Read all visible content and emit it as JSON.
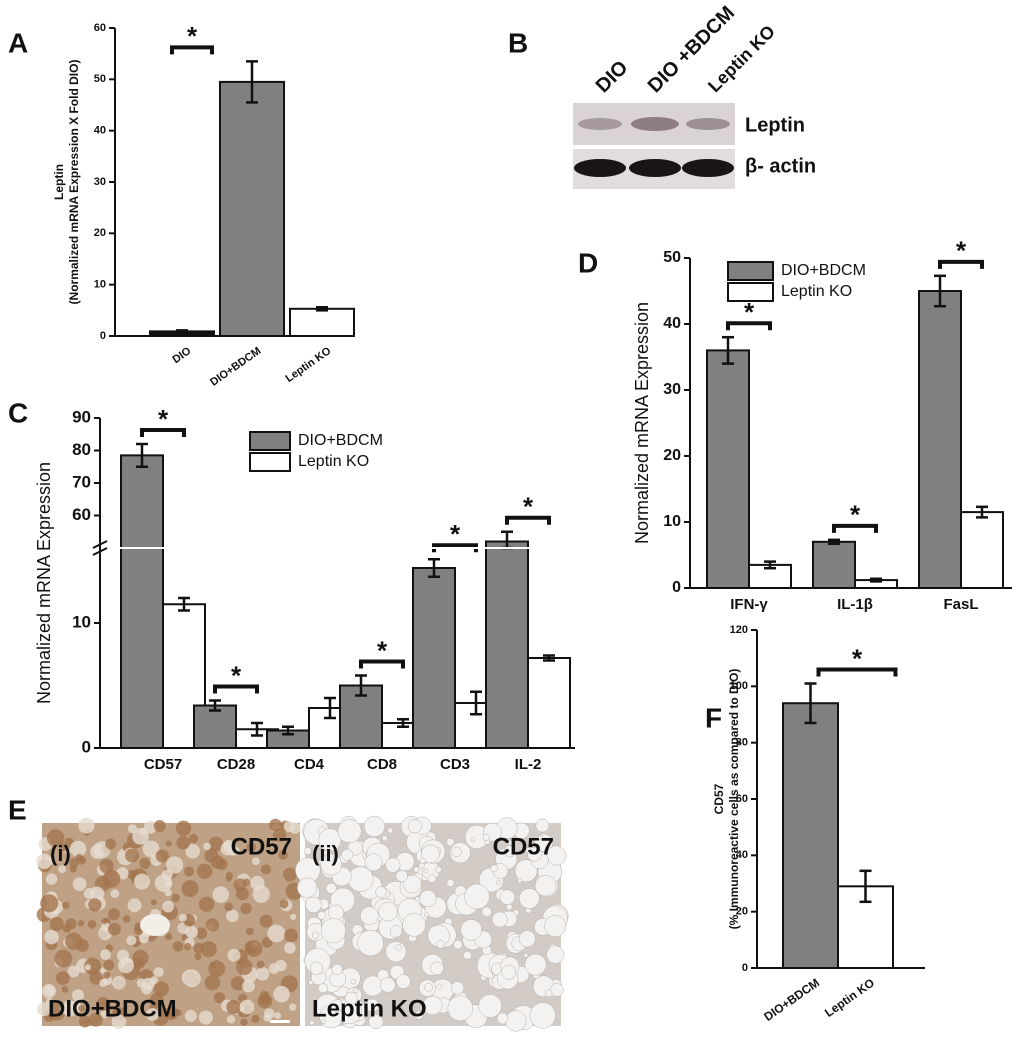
{
  "chart_data": [
    {
      "panel": "A",
      "type": "bar",
      "ylabel": [
        "Leptin",
        "(Normalized mRNA Expression X Fold DIO)"
      ],
      "categories": [
        "DIO",
        "DIO+BDCM",
        "Leptin KO"
      ],
      "values": [
        0.9,
        49.5,
        5.3
      ],
      "errors": [
        0.2,
        4,
        0.3
      ],
      "colors": [
        "#111111",
        "#808080",
        "#ffffff"
      ],
      "ylim": [
        0,
        60
      ],
      "yticks": [
        0,
        10,
        20,
        30,
        40,
        50,
        60
      ],
      "annotation": "*"
    },
    {
      "panel": "C",
      "type": "bar",
      "ylabel": "Normalized mRNA Expression",
      "categories": [
        "CD57",
        "CD28",
        "CD4",
        "CD8",
        "CD3",
        "IL-2"
      ],
      "series": [
        {
          "name": "DIO+BDCM",
          "color": "#808080",
          "values": [
            78.5,
            3.4,
            1.4,
            5,
            14.4,
            52
          ],
          "errors": [
            3.5,
            0.4,
            0.3,
            0.8,
            0.7,
            3
          ]
        },
        {
          "name": "Leptin KO",
          "color": "#ffffff",
          "values": [
            11.5,
            1.5,
            3.2,
            2,
            3.6,
            7.2
          ],
          "errors": [
            0.5,
            0.5,
            0.8,
            0.3,
            0.9,
            0.2
          ]
        }
      ],
      "ylim": [
        0,
        90
      ],
      "ybreak": [
        16,
        50
      ],
      "yticks": [
        0,
        10,
        60,
        70,
        80,
        90
      ],
      "stars": [
        "*",
        "*",
        null,
        "*",
        "*",
        "*"
      ]
    },
    {
      "panel": "D",
      "type": "bar",
      "ylabel": "Normalized mRNA Expression",
      "categories": [
        "IFN-γ",
        "IL-1β",
        "FasL"
      ],
      "series": [
        {
          "name": "DIO+BDCM",
          "color": "#808080",
          "values": [
            36,
            7,
            45
          ],
          "errors": [
            2,
            0.3,
            2.3
          ]
        },
        {
          "name": "Leptin KO",
          "color": "#ffffff",
          "values": [
            3.5,
            1.2,
            11.5
          ],
          "errors": [
            0.5,
            0.2,
            0.8
          ]
        }
      ],
      "ylim": [
        0,
        50
      ],
      "yticks": [
        0,
        10,
        20,
        30,
        40,
        50
      ],
      "stars": [
        "*",
        "*",
        "*"
      ]
    },
    {
      "panel": "F",
      "type": "bar",
      "ylabel": [
        "CD57",
        "(% Immunoreactive cells as compared to DIO)"
      ],
      "categories": [
        "DIO+BDCM",
        "Leptin KO"
      ],
      "values": [
        94,
        29
      ],
      "errors": [
        7,
        5.5
      ],
      "colors": [
        "#808080",
        "#ffffff"
      ],
      "ylim": [
        0,
        120
      ],
      "yticks": [
        0,
        20,
        40,
        60,
        80,
        100,
        120
      ],
      "annotation": "*"
    }
  ],
  "blot": {
    "panel": "B",
    "lanes": [
      "DIO",
      "DIO +BDCM",
      "Leptin KO"
    ],
    "rows": [
      "Leptin",
      "β- actin"
    ]
  },
  "micrographs": {
    "panel": "E",
    "images": [
      {
        "label": "(i)",
        "stain": "CD57",
        "group": "DIO+BDCM"
      },
      {
        "label": "(ii)",
        "stain": "CD57",
        "group": "Leptin KO"
      }
    ]
  }
}
